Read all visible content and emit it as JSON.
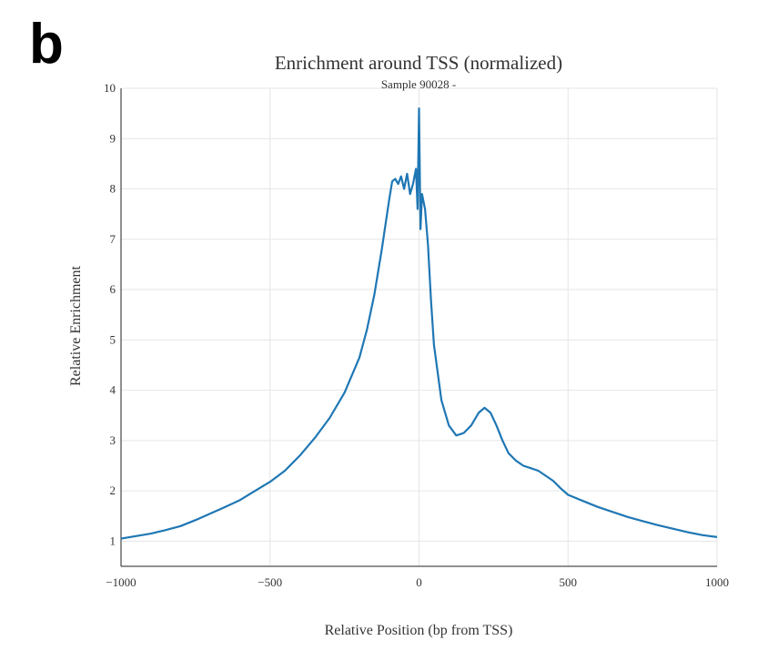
{
  "panel_label": "b",
  "chart_data": {
    "type": "line",
    "title": "Enrichment around TSS (normalized)",
    "subtitle": "Sample 90028 -",
    "xlabel": "Relative Position (bp from TSS)",
    "ylabel": "Relative Enrichment",
    "xlim": [
      -1000,
      1000
    ],
    "ylim": [
      0.5,
      10
    ],
    "xticks": [
      -1000,
      -500,
      0,
      500,
      1000
    ],
    "xtick_labels": [
      "−1000",
      "−500",
      "0",
      "500",
      "1000"
    ],
    "yticks": [
      1,
      2,
      3,
      4,
      5,
      6,
      7,
      8,
      9,
      10
    ],
    "ytick_labels": [
      "1",
      "2",
      "3",
      "4",
      "5",
      "6",
      "7",
      "8",
      "9",
      "10"
    ],
    "grid": true,
    "series": [
      {
        "color": "#1f77b4",
        "x": [
          -1000,
          -950,
          -900,
          -850,
          -800,
          -750,
          -700,
          -650,
          -600,
          -550,
          -500,
          -450,
          -400,
          -350,
          -300,
          -250,
          -200,
          -175,
          -150,
          -125,
          -100,
          -90,
          -80,
          -70,
          -60,
          -50,
          -40,
          -30,
          -20,
          -10,
          -5,
          0,
          5,
          10,
          20,
          30,
          40,
          50,
          75,
          100,
          125,
          150,
          175,
          200,
          220,
          240,
          260,
          280,
          300,
          325,
          350,
          375,
          400,
          425,
          450,
          475,
          500,
          550,
          600,
          650,
          700,
          750,
          800,
          850,
          900,
          950,
          1000
        ],
        "y": [
          1.05,
          1.1,
          1.15,
          1.22,
          1.3,
          1.42,
          1.55,
          1.68,
          1.82,
          2.0,
          2.18,
          2.4,
          2.7,
          3.05,
          3.45,
          3.95,
          4.65,
          5.2,
          5.9,
          6.8,
          7.8,
          8.15,
          8.2,
          8.1,
          8.25,
          8.0,
          8.3,
          7.9,
          8.1,
          8.4,
          7.6,
          9.6,
          7.2,
          7.9,
          7.6,
          6.9,
          5.8,
          4.9,
          3.8,
          3.3,
          3.1,
          3.15,
          3.3,
          3.55,
          3.65,
          3.55,
          3.3,
          3.0,
          2.75,
          2.6,
          2.5,
          2.45,
          2.4,
          2.3,
          2.2,
          2.05,
          1.92,
          1.8,
          1.68,
          1.58,
          1.48,
          1.4,
          1.32,
          1.25,
          1.18,
          1.12,
          1.08
        ]
      }
    ]
  }
}
